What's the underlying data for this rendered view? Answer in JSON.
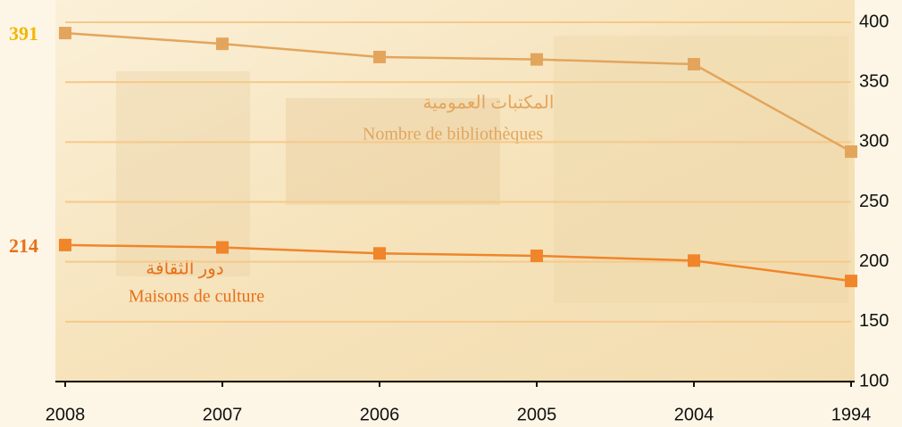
{
  "chart_data": {
    "type": "line",
    "categories": [
      "2008",
      "2007",
      "2006",
      "2005",
      "2004",
      "1994"
    ],
    "series": [
      {
        "name": "Nombre de bibliothèques",
        "name_ar": "المكتبات العمومية",
        "color": "#e3a55c",
        "label_color": "#f2b705",
        "values": [
          391,
          382,
          371,
          369,
          365,
          292
        ]
      },
      {
        "name": "Maisons de culture",
        "name_ar": "دور الثقافة",
        "color": "#f0852a",
        "label_color": "#e8701a",
        "values": [
          214,
          212,
          207,
          205,
          201,
          184
        ]
      }
    ],
    "ylim": [
      100,
      400
    ],
    "yticks": [
      100,
      150,
      200,
      250,
      300,
      350,
      400
    ],
    "grid": true,
    "y_axis_side": "right"
  }
}
